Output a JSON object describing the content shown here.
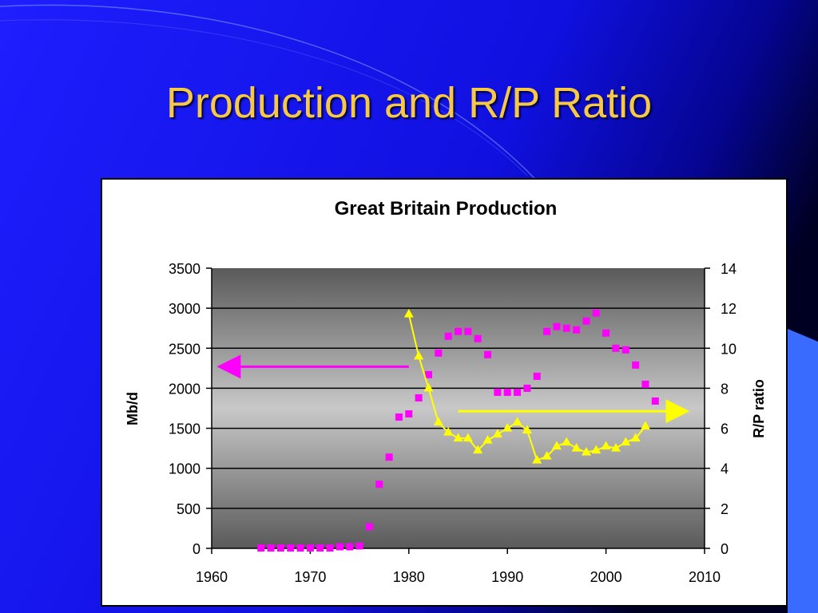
{
  "slide": {
    "title": "Production and R/P Ratio"
  },
  "colors": {
    "background_start": "#1E1EFF",
    "background_end": "#000022",
    "title": "#F5C84A",
    "production_marker": "#FF00FF",
    "rp_ratio_marker": "#FFFF00",
    "plot_dark": "#5A5A5A",
    "plot_light": "#C8C8C8"
  },
  "chart_data": {
    "type": "scatter",
    "title": "Great Britain Production",
    "ylabel": "Mb/d",
    "y2label": "R/P ratio",
    "xlim": [
      1960,
      2010
    ],
    "ylim": [
      0,
      3500
    ],
    "y2lim": [
      0,
      14
    ],
    "x_ticks": [
      "1960",
      "1970",
      "1980",
      "1990",
      "2000",
      "2010"
    ],
    "y_ticks": [
      "0",
      "500",
      "1000",
      "1500",
      "2000",
      "2500",
      "3000",
      "3500"
    ],
    "y2_ticks": [
      "0",
      "2",
      "4",
      "6",
      "8",
      "10",
      "12",
      "14"
    ],
    "grid": true,
    "series": [
      {
        "axis": "left",
        "marker": "square",
        "color": "#FF00FF",
        "points": [
          [
            1965,
            5
          ],
          [
            1966,
            5
          ],
          [
            1967,
            5
          ],
          [
            1968,
            5
          ],
          [
            1969,
            5
          ],
          [
            1970,
            5
          ],
          [
            1971,
            5
          ],
          [
            1972,
            5
          ],
          [
            1973,
            20
          ],
          [
            1974,
            20
          ],
          [
            1975,
            30
          ],
          [
            1976,
            270
          ],
          [
            1977,
            800
          ],
          [
            1978,
            1140
          ],
          [
            1979,
            1640
          ],
          [
            1980,
            1680
          ],
          [
            1981,
            1880
          ],
          [
            1982,
            2170
          ],
          [
            1983,
            2440
          ],
          [
            1984,
            2650
          ],
          [
            1985,
            2710
          ],
          [
            1986,
            2710
          ],
          [
            1987,
            2620
          ],
          [
            1988,
            2420
          ],
          [
            1989,
            1950
          ],
          [
            1990,
            1950
          ],
          [
            1991,
            1950
          ],
          [
            1992,
            2000
          ],
          [
            1993,
            2150
          ],
          [
            1994,
            2710
          ],
          [
            1995,
            2770
          ],
          [
            1996,
            2750
          ],
          [
            1997,
            2730
          ],
          [
            1998,
            2840
          ],
          [
            1999,
            2940
          ],
          [
            2000,
            2690
          ],
          [
            2001,
            2500
          ],
          [
            2002,
            2480
          ],
          [
            2003,
            2290
          ],
          [
            2004,
            2050
          ],
          [
            2005,
            1840
          ]
        ]
      },
      {
        "axis": "right",
        "marker": "triangle",
        "color": "#FFFF00",
        "connected": true,
        "points": [
          [
            1980,
            11.7
          ],
          [
            1981,
            9.6
          ],
          [
            1982,
            8.0
          ],
          [
            1983,
            6.3
          ],
          [
            1984,
            5.8
          ],
          [
            1985,
            5.5
          ],
          [
            1986,
            5.5
          ],
          [
            1987,
            4.9
          ],
          [
            1988,
            5.4
          ],
          [
            1989,
            5.7
          ],
          [
            1990,
            6.0
          ],
          [
            1991,
            6.3
          ],
          [
            1992,
            5.9
          ],
          [
            1993,
            4.4
          ],
          [
            1994,
            4.6
          ],
          [
            1995,
            5.1
          ],
          [
            1996,
            5.3
          ],
          [
            1997,
            5.0
          ],
          [
            1998,
            4.8
          ],
          [
            1999,
            4.9
          ],
          [
            2000,
            5.1
          ],
          [
            2001,
            5.0
          ],
          [
            2002,
            5.3
          ],
          [
            2003,
            5.5
          ],
          [
            2004,
            6.1
          ]
        ]
      }
    ],
    "annotations": [
      {
        "type": "arrow",
        "direction": "left",
        "color": "#FF00FF",
        "from_x": 1980,
        "to_x": 1961,
        "axis": "left",
        "y": 2270
      },
      {
        "type": "arrow",
        "direction": "right",
        "color": "#FFFF00",
        "from_x": 1985,
        "to_x": 2008,
        "axis": "right",
        "y": 6.85
      }
    ]
  }
}
